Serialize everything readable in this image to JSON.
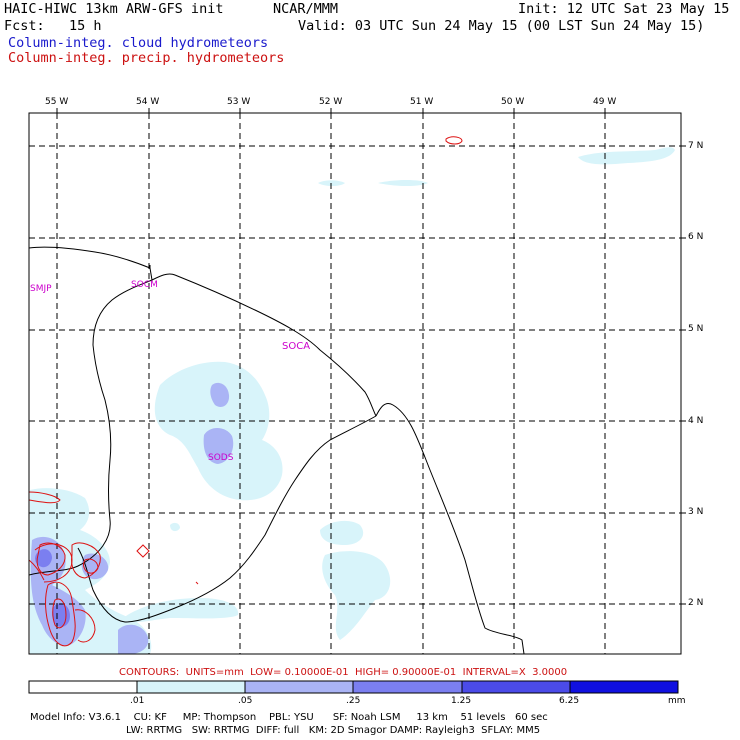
{
  "header": {
    "model": "HAIC-HIWC 13km ARW-GFS init",
    "org": "NCAR/MMM",
    "init": "Init: 12 UTC Sat 23 May 15",
    "fcst": "Fcst:   15 h",
    "valid": "Valid: 03 UTC Sun 24 May 15 (00 LST Sun 24 May 15)",
    "field1": "Column-integ. cloud hydrometeors",
    "field2": "Column-integ. precip. hydrometeors"
  },
  "map": {
    "lon_labels": [
      "55 W",
      "54 W",
      "53 W",
      "52 W",
      "51 W",
      "50 W",
      "49 W"
    ],
    "lat_labels": [
      "7 N",
      "6 N",
      "5 N",
      "4 N",
      "3 N",
      "2 N"
    ],
    "stations": [
      "SMJP",
      "SOCM",
      "SOCA",
      "SODS"
    ]
  },
  "contours_line": "CONTOURS:  UNITS=mm  LOW= 0.10000E-01  HIGH= 0.90000E-01  INTERVAL=X  3.0000",
  "colorbar": {
    "ticks": [
      ".01",
      ".05",
      ".25",
      "1.25",
      "6.25"
    ],
    "units": "mm",
    "colors": [
      "#ffffff",
      "#d8f4fa",
      "#aab4f5",
      "#7b7ff0",
      "#4b4be8",
      "#1010e0"
    ]
  },
  "footer": {
    "line1": "Model Info: V3.6.1    CU: KF     MP: Thompson    PBL: YSU      SF: Noah LSM     13 km    51 levels   60 sec",
    "line2": "LW: RRTMG   SW: RRTMG  DIFF: full   KM: 2D Smagor DAMP: Rayleigh3  SFLAY: MM5"
  }
}
